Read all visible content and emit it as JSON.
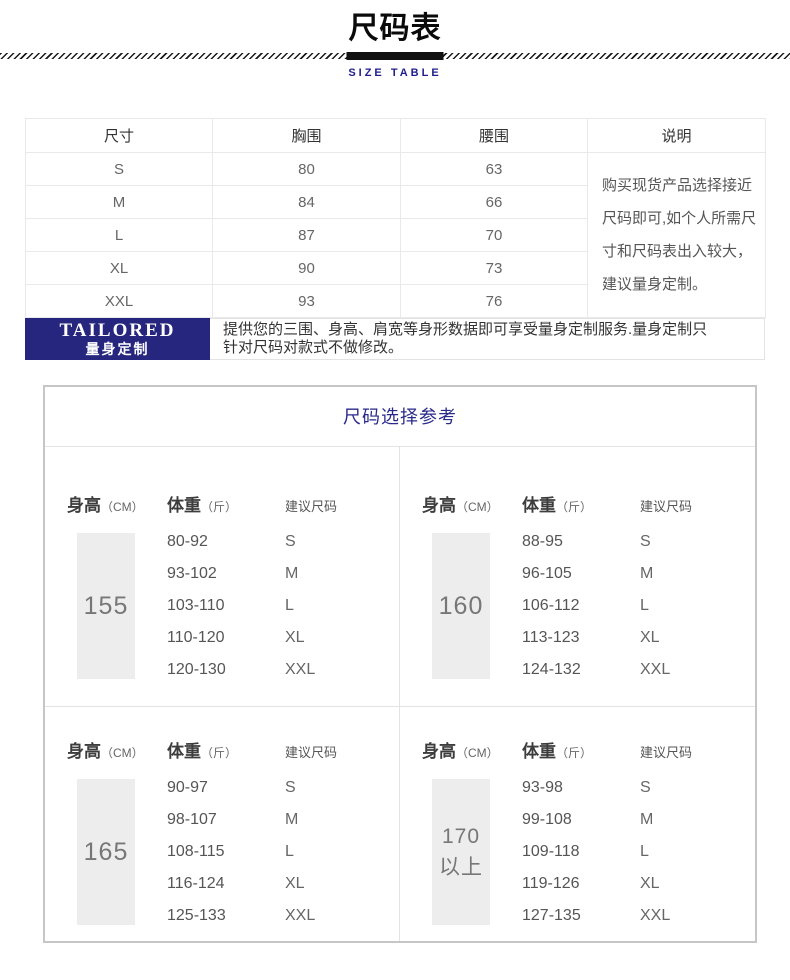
{
  "page": {
    "title": "尺码表",
    "subtitle": "SIZE TABLE"
  },
  "size_table": {
    "columns": [
      "尺寸",
      "胸围",
      "腰围",
      "说明"
    ],
    "rows": [
      [
        "S",
        "80",
        "63"
      ],
      [
        "M",
        "84",
        "66"
      ],
      [
        "L",
        "87",
        "70"
      ],
      [
        "XL",
        "90",
        "73"
      ],
      [
        "XXL",
        "93",
        "76"
      ]
    ],
    "note": "购买现货产品选择接近尺码即可,如个人所需尺寸和尺码表出入较大，建议量身定制。"
  },
  "tailored": {
    "title_en": "TAILORED",
    "title_cn": "量身定制",
    "description": "提供您的三围、身高、肩宽等身形数据即可享受量身定制服务.量身定制只针对尺码对款式不做修改。"
  },
  "reference": {
    "title": "尺码选择参考",
    "headers": {
      "height": "身高",
      "height_unit": "（CM）",
      "weight": "体重",
      "weight_unit": "（斤）",
      "size": "建议尺码"
    },
    "groups": [
      {
        "height": "155",
        "rows": [
          [
            "80-92",
            "S"
          ],
          [
            "93-102",
            "M"
          ],
          [
            "103-110",
            "L"
          ],
          [
            "110-120",
            "XL"
          ],
          [
            "120-130",
            "XXL"
          ]
        ]
      },
      {
        "height": "160",
        "rows": [
          [
            "88-95",
            "S"
          ],
          [
            "96-105",
            "M"
          ],
          [
            "106-112",
            "L"
          ],
          [
            "113-123",
            "XL"
          ],
          [
            "124-132",
            "XXL"
          ]
        ]
      },
      {
        "height": "165",
        "rows": [
          [
            "90-97",
            "S"
          ],
          [
            "98-107",
            "M"
          ],
          [
            "108-115",
            "L"
          ],
          [
            "116-124",
            "XL"
          ],
          [
            "125-133",
            "XXL"
          ]
        ]
      },
      {
        "height": "170",
        "height_suffix": "以上",
        "rows": [
          [
            "93-98",
            "S"
          ],
          [
            "99-108",
            "M"
          ],
          [
            "109-118",
            "L"
          ],
          [
            "119-126",
            "XL"
          ],
          [
            "127-135",
            "XXL"
          ]
        ]
      }
    ]
  },
  "colors": {
    "accent_navy": "#1e1e8c",
    "tailored_bg": "#26267e",
    "ref_title_navy": "#2a2a8a",
    "border_outer": "#c6c6c6",
    "border_light": "#e3e3e3",
    "table_border": "#e9e9e9",
    "height_box_bg": "#ededed",
    "text_dark": "#333333",
    "text_mid": "#555555"
  }
}
